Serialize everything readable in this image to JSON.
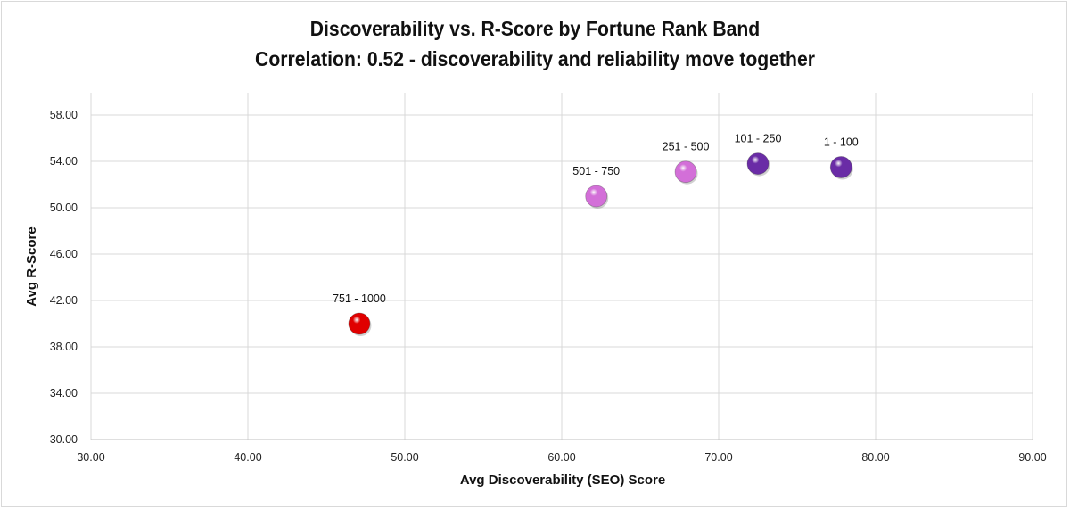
{
  "chart_data": {
    "type": "scatter",
    "title": "Discoverability vs. R-Score by Fortune Rank Band",
    "subtitle": "Correlation: 0.52 -  discoverability and reliability move together",
    "xlabel": "Avg Discoverability (SEO) Score",
    "ylabel": "Avg R-Score",
    "xlim": [
      30,
      90
    ],
    "ylim": [
      30,
      58
    ],
    "x_ticks": [
      30,
      40,
      50,
      60,
      70,
      80,
      90
    ],
    "y_ticks": [
      30,
      34,
      38,
      42,
      46,
      50,
      54,
      58
    ],
    "x_tick_labels": [
      "30.00",
      "40.00",
      "50.00",
      "60.00",
      "70.00",
      "80.00",
      "90.00"
    ],
    "y_tick_labels": [
      "30.00",
      "34.00",
      "38.00",
      "42.00",
      "46.00",
      "50.00",
      "54.00",
      "58.00"
    ],
    "grid": true,
    "points": [
      {
        "label": "751 - 1000",
        "x": 47.1,
        "y": 40.0,
        "color": "#e00000"
      },
      {
        "label": "501 - 750",
        "x": 62.2,
        "y": 51.0,
        "color": "#d36fd8"
      },
      {
        "label": "251 - 500",
        "x": 67.9,
        "y": 53.1,
        "color": "#d36fd8"
      },
      {
        "label": "101 - 250",
        "x": 72.5,
        "y": 53.8,
        "color": "#6a2ca6"
      },
      {
        "label": "1 - 100",
        "x": 77.8,
        "y": 53.5,
        "color": "#6a2ca6"
      }
    ]
  }
}
